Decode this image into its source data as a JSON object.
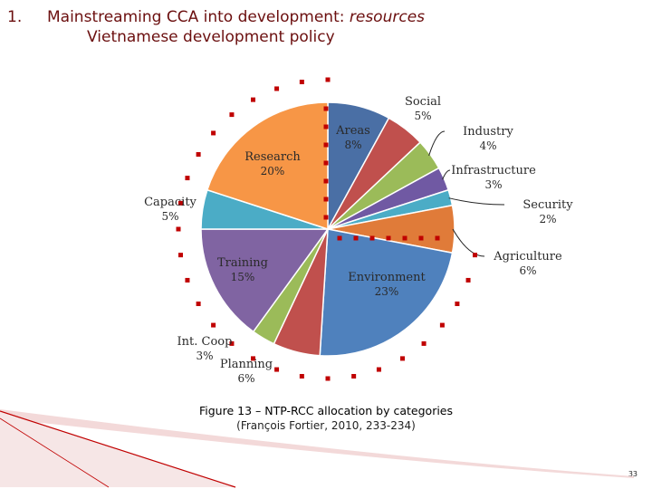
{
  "slide": {
    "number_label": "1.",
    "title_prefix": "Mainstreaming CCA into development: ",
    "title_emphasis": "resources",
    "subtitle": "Vietnamese development policy",
    "page_number": "33"
  },
  "caption": {
    "main": "Figure 13 – NTP-RCC allocation by categories",
    "source": "(François Fortier, 2010, 233-234)"
  },
  "colors": {
    "title": "#6b0f0f",
    "dots": "#c00000",
    "leader": "#222222"
  },
  "chart_data": {
    "type": "pie",
    "title": "",
    "start_angle_deg": 0,
    "direction": "clockwise",
    "slices": [
      {
        "name": "Areas",
        "value": 8,
        "label": "8%",
        "color": "#4a6fa5"
      },
      {
        "name": "Social",
        "value": 5,
        "label": "5%",
        "color": "#c0504d"
      },
      {
        "name": "Industry",
        "value": 4,
        "label": "4%",
        "color": "#9bbb59"
      },
      {
        "name": "Infrastructure",
        "value": 3,
        "label": "3%",
        "color": "#7059a3"
      },
      {
        "name": "Security",
        "value": 2,
        "label": "2%",
        "color": "#4bacc6"
      },
      {
        "name": "Agriculture",
        "value": 6,
        "label": "6%",
        "color": "#e07b39"
      },
      {
        "name": "Environment",
        "value": 23,
        "label": "23%",
        "color": "#4f81bd"
      },
      {
        "name": "Planning",
        "value": 6,
        "label": "6%",
        "color": "#c0504d"
      },
      {
        "name": "Int. Coop",
        "value": 3,
        "label": "3%",
        "color": "#9bbb59"
      },
      {
        "name": "Training",
        "value": 15,
        "label": "15%",
        "color": "#8064a2"
      },
      {
        "name": "Capacity",
        "value": 5,
        "label": "5%",
        "color": "#4bacc6"
      },
      {
        "name": "Research",
        "value": 20,
        "label": "20%",
        "color": "#f79646"
      }
    ]
  }
}
